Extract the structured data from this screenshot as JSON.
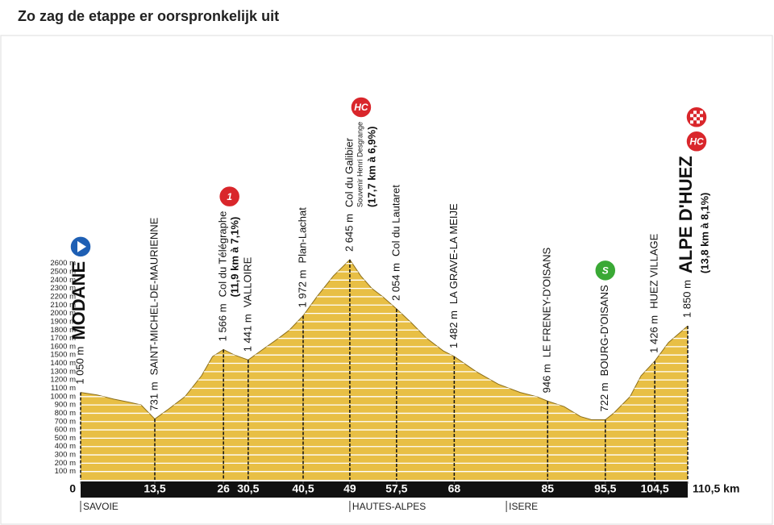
{
  "chart_data": {
    "type": "area",
    "title": "Zo zag de etappe er oorspronkelijk uit",
    "color": "#e8bf45",
    "x": [
      0,
      3,
      6,
      9,
      11,
      13.5,
      16,
      19,
      22,
      24,
      26,
      28,
      30.5,
      33,
      36,
      38,
      40.5,
      43,
      46,
      49,
      51,
      53,
      55,
      57.5,
      60,
      63,
      66,
      68,
      72,
      76,
      80,
      83,
      85,
      88,
      91,
      93,
      95.5,
      97,
      100,
      102,
      104.5,
      107,
      110.5
    ],
    "values": [
      1050,
      1020,
      970,
      930,
      900,
      731,
      850,
      1000,
      1250,
      1480,
      1566,
      1500,
      1441,
      1560,
      1700,
      1800,
      1972,
      2200,
      2450,
      2645,
      2450,
      2300,
      2200,
      2054,
      1900,
      1700,
      1550,
      1482,
      1300,
      1150,
      1050,
      1000,
      946,
      880,
      760,
      722,
      722,
      800,
      1000,
      1250,
      1426,
      1650,
      1850
    ],
    "xlim": [
      0,
      110.5
    ],
    "ylim": [
      0,
      2600
    ],
    "xticks": [
      0,
      {
        "value": 13.5,
        "label": "13,5"
      },
      26,
      {
        "value": 30.5,
        "label": "30,5"
      },
      {
        "value": 40.5,
        "label": "40,5"
      },
      49,
      {
        "value": 57.5,
        "label": "57,5"
      },
      68,
      85,
      {
        "value": 95.5,
        "label": "95,5"
      },
      {
        "value": 104.5,
        "label": "104,5"
      },
      {
        "value": 110.5,
        "label": "110,5 km"
      }
    ],
    "yticks": [
      {
        "value": 100,
        "label": "100 m"
      },
      {
        "value": 200,
        "label": "200 m"
      },
      {
        "value": 300,
        "label": "300 m"
      },
      {
        "value": 400,
        "label": "400 m"
      },
      {
        "value": 500,
        "label": "500 m"
      },
      {
        "value": 600,
        "label": "600 m"
      },
      {
        "value": 700,
        "label": "700 m"
      },
      {
        "value": 800,
        "label": "800 m"
      },
      {
        "value": 900,
        "label": "900 m"
      },
      {
        "value": 1000,
        "label": "1000 m"
      },
      {
        "value": 1100,
        "label": "1100 m"
      },
      {
        "value": 1200,
        "label": "1200 m"
      },
      {
        "value": 1300,
        "label": "1300 m"
      },
      {
        "value": 1400,
        "label": "1400 m"
      },
      {
        "value": 1500,
        "label": "1500 m"
      },
      {
        "value": 1600,
        "label": "1600 m"
      },
      {
        "value": 1700,
        "label": "1700 m"
      },
      {
        "value": 1800,
        "label": "1800 m"
      },
      {
        "value": 1900,
        "label": "1900 m"
      },
      {
        "value": 2000,
        "label": "2000 m"
      },
      {
        "value": 2100,
        "label": "2100 m"
      },
      {
        "value": 2200,
        "label": "2200 m"
      },
      {
        "value": 2300,
        "label": "2300 m"
      },
      {
        "value": 2400,
        "label": "2400 m"
      },
      {
        "value": 2500,
        "label": "2500 m"
      },
      {
        "value": 2600,
        "label": "2600 m"
      }
    ],
    "grid": true,
    "waypoints": [
      {
        "km": 0,
        "elevation": 1050,
        "elevation_label": "1 050 m",
        "name": "MODANE",
        "major": true,
        "start": true
      },
      {
        "km": 13.5,
        "elevation": 731,
        "elevation_label": "731 m",
        "name": "SAINT-MICHEL-DE-MAURIENNE"
      },
      {
        "km": 26,
        "elevation": 1566,
        "elevation_label": "1 566 m",
        "name": "Col du Télégraphe",
        "climb": "(11,9 km à 7,1%)",
        "badge": "1",
        "badge_color": "#d9262b"
      },
      {
        "km": 30.5,
        "elevation": 1441,
        "elevation_label": "1 441 m",
        "name": "VALLOIRE"
      },
      {
        "km": 40.5,
        "elevation": 1972,
        "elevation_label": "1 972 m",
        "name": "Plan-Lachat"
      },
      {
        "km": 49,
        "elevation": 2645,
        "elevation_label": "2 645 m",
        "name": "Col du Galibier",
        "note": "Souvenir Henri Desgrange",
        "climb": "(17,7 km à 6,9%)",
        "badge": "HC",
        "badge_color": "#d9262b"
      },
      {
        "km": 57.5,
        "elevation": 2054,
        "elevation_label": "2 054 m",
        "name": "Col du Lautaret"
      },
      {
        "km": 68,
        "elevation": 1482,
        "elevation_label": "1 482 m",
        "name": "LA GRAVE-LA MEIJE"
      },
      {
        "km": 85,
        "elevation": 946,
        "elevation_label": "946 m",
        "name": "LE FRENEY-D'OISANS"
      },
      {
        "km": 95.5,
        "elevation": 722,
        "elevation_label": "722 m",
        "name": "BOURG-D'OISANS",
        "badge": "S",
        "badge_color": "#3aa935"
      },
      {
        "km": 104.5,
        "elevation": 1426,
        "elevation_label": "1 426 m",
        "name": "HUEZ VILLAGE"
      },
      {
        "km": 110.5,
        "elevation": 1850,
        "elevation_label": "1 850 m",
        "name": "ALPE D'HUEZ",
        "major": true,
        "climb": "(13,8 km à 8,1%)",
        "badge": "HC",
        "badge_color": "#d9262b",
        "finish": true
      }
    ],
    "regions": [
      {
        "km": 0,
        "label": "SAVOIE"
      },
      {
        "km": 49,
        "label": "HAUTES-ALPES"
      },
      {
        "km": 77.5,
        "label": "ISERE"
      }
    ]
  }
}
